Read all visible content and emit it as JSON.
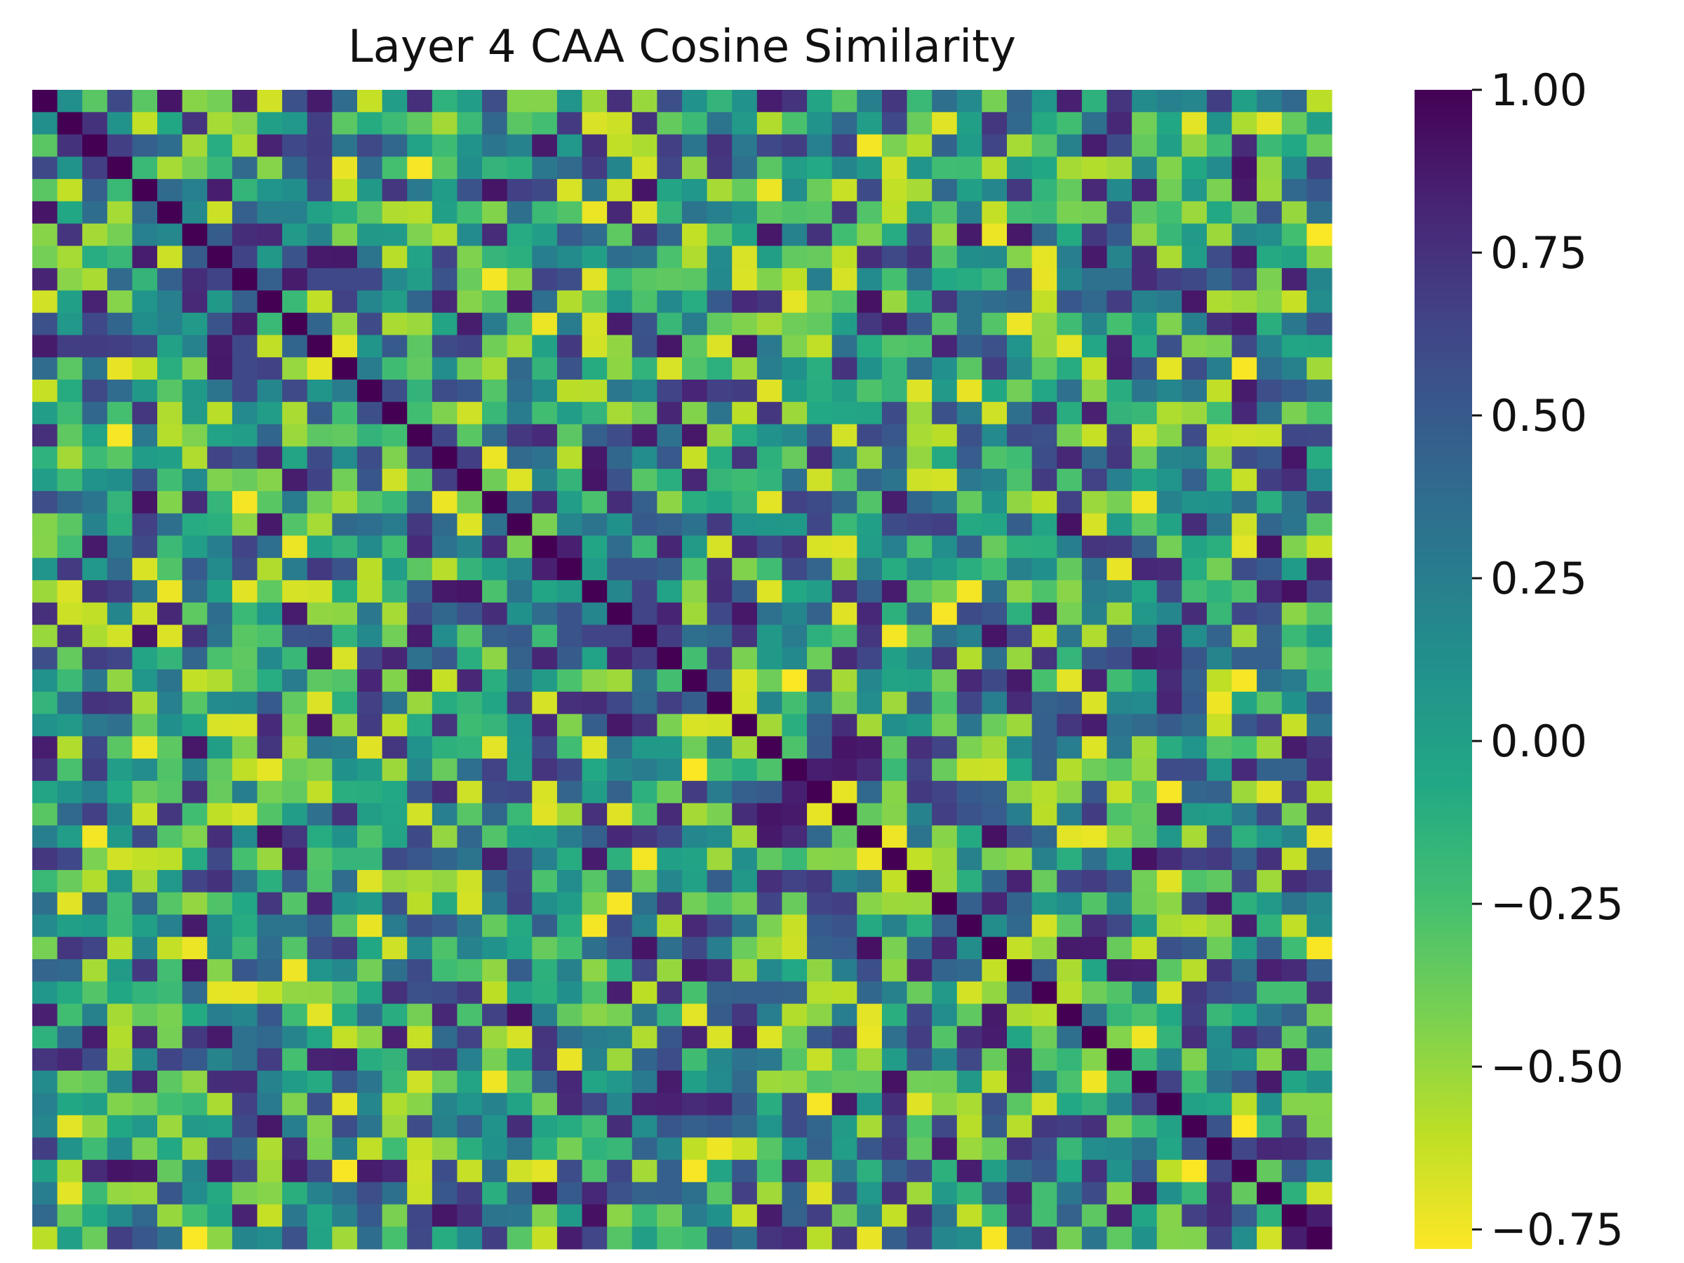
{
  "chart_data": {
    "type": "heatmap",
    "title": "Layer 4 CAA Cosine Similarity",
    "rows": 52,
    "cols": 52,
    "x_tick_labels": [],
    "y_tick_labels": [],
    "colormap": "viridis_r",
    "color_range": [
      -0.78,
      1.0
    ],
    "colorbar_ticks": [
      {
        "value": 1.0,
        "label": "1.00"
      },
      {
        "value": 0.75,
        "label": "0.75"
      },
      {
        "value": 0.5,
        "label": "0.50"
      },
      {
        "value": 0.25,
        "label": "0.25"
      },
      {
        "value": 0.0,
        "label": "0.00"
      },
      {
        "value": -0.25,
        "label": "−0.25"
      },
      {
        "value": -0.5,
        "label": "−0.50"
      },
      {
        "value": -0.75,
        "label": "−0.75"
      }
    ],
    "diagonal_value": 1.0,
    "offdiagonal_distribution": "mixed values approximately between -0.78 and 0.95, symmetric matrix",
    "grid": false
  }
}
